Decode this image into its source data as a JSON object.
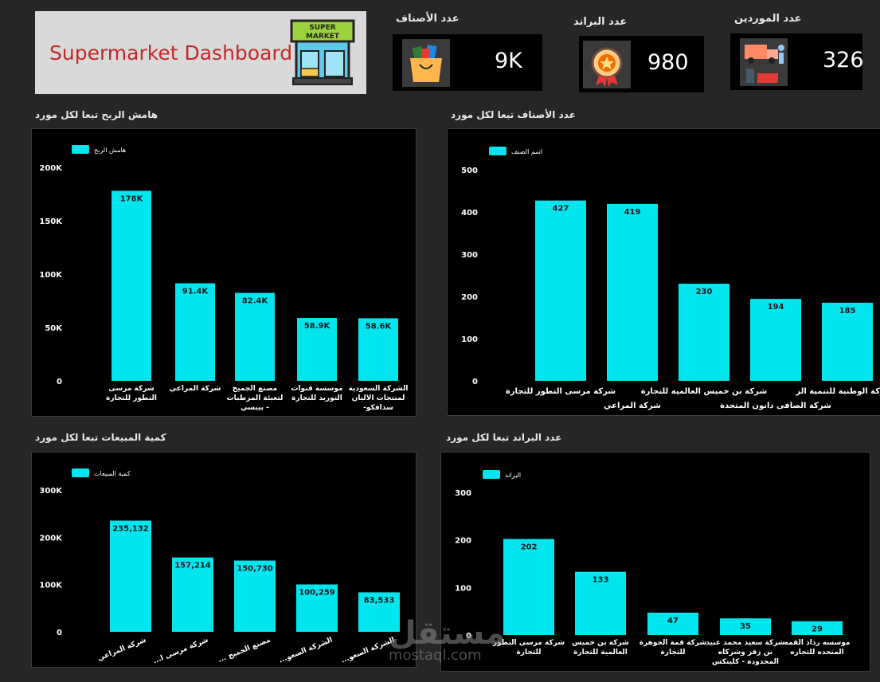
{
  "header": {
    "title": "Supermarket Dashboard",
    "logo_text": [
      "SUPER",
      "MARKET"
    ]
  },
  "kpis": [
    {
      "label": "عدد الأصناف",
      "value": "9K",
      "icon": "shopping-bag-icon"
    },
    {
      "label": "عدد البراند",
      "value": "980",
      "icon": "award-badge-icon"
    },
    {
      "label": "عدد الموردين",
      "value": "326",
      "icon": "delivery-truck-icon"
    }
  ],
  "chart_data": [
    {
      "type": "bar",
      "title": "هامش الربح تبعا لكل مورد",
      "legend": "هامش الربح",
      "categories": [
        "شركة مرسى التطور للتجارة",
        "شركة المراعي",
        "مصنع الجميح لتعبئة المرطبات - بيبسي",
        "موسسة قنوات التوريد للتجارة",
        "الشركة السعودية لمنتجات الالبان سدافكو-"
      ],
      "values": [
        178000,
        91400,
        82400,
        58900,
        58600
      ],
      "data_labels": [
        "178K",
        "91.4K",
        "82.4K",
        "58.9K",
        "58.6K"
      ],
      "yticks": [
        "0",
        "50K",
        "100K",
        "150K",
        "200K"
      ],
      "ylim": [
        0,
        200000
      ]
    },
    {
      "type": "bar",
      "title": "عدد الأصناف تبعا لكل مورد",
      "legend": "اسم الصنف",
      "categories": [
        "شركة مرسى التطور للتجارة",
        "شركة المراعي",
        "شركة بن خميس العالمية للتجارة",
        "شركة الصافى دانون المتحدة",
        "الشركة الوطنية للتنمية الز"
      ],
      "values": [
        427,
        419,
        230,
        194,
        185
      ],
      "data_labels": [
        "427",
        "419",
        "230",
        "194",
        "185"
      ],
      "yticks": [
        "0",
        "100",
        "200",
        "300",
        "400",
        "500"
      ],
      "ylim": [
        0,
        500
      ]
    },
    {
      "type": "bar",
      "title": "كمية المبيعات تبعا لكل مورد",
      "legend": "كمية المبيعات",
      "categories": [
        "شركة المراعي",
        "شركة مرسى ا...",
        "مصنع الجميح ...",
        "الشركة السعو...",
        "الشركة السعو..."
      ],
      "values": [
        235132,
        157214,
        150730,
        100259,
        83533
      ],
      "data_labels": [
        "235,132",
        "157,214",
        "150,730",
        "100,259",
        "83,533"
      ],
      "yticks": [
        "0",
        "100K",
        "200K",
        "300K"
      ],
      "ylim": [
        0,
        300000
      ]
    },
    {
      "type": "bar",
      "title": "عدد البراند تبعا لكل مورد",
      "legend": "البراند",
      "categories": [
        "شركة مرسى التطور للتجارة",
        "شركة بن خميس العالمية للتجارة",
        "شركة قمة الجوهرة للتجارة",
        "شركة سعيد محمد عبيد بن زقر وشركاه المحدودة - كلينكس",
        "موسسه رذاذ القمه المتحده للتجاره"
      ],
      "values": [
        202,
        133,
        47,
        35,
        29
      ],
      "data_labels": [
        "202",
        "133",
        "47",
        "35",
        "29"
      ],
      "yticks": [
        "0",
        "100",
        "200",
        "300"
      ],
      "ylim": [
        0,
        300
      ]
    }
  ],
  "watermark": {
    "arabic": "مستقل",
    "latin": "mostaql.com"
  },
  "colors": {
    "bar": "#00e5ee",
    "panel": "#000000",
    "background": "#262626",
    "title_red": "#c62828"
  }
}
